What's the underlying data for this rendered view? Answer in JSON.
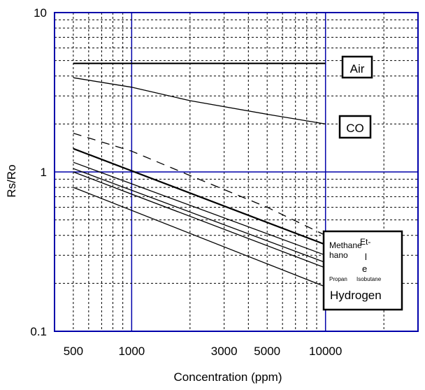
{
  "chart_data": {
    "type": "line",
    "xlabel": "Concentration (ppm)",
    "ylabel": "Rs/Ro",
    "xscale": "log",
    "yscale": "log",
    "xlim": [
      400,
      30000
    ],
    "ylim": [
      0.1,
      10
    ],
    "grid": true,
    "x_ticks": [
      {
        "value": 500,
        "label": "500"
      },
      {
        "value": 1000,
        "label": "1000"
      },
      {
        "value": 3000,
        "label": "3000"
      },
      {
        "value": 5000,
        "label": "5000"
      },
      {
        "value": 10000,
        "label": "10000"
      }
    ],
    "y_ticks": [
      {
        "value": 10,
        "label": "10"
      },
      {
        "value": 1,
        "label": "1"
      },
      {
        "value": 0.1,
        "label": "0.1"
      }
    ],
    "series": [
      {
        "name": "Air",
        "style": "solid",
        "x": [
          500,
          10000
        ],
        "y": [
          4.8,
          4.8
        ]
      },
      {
        "name": "CO",
        "style": "solid",
        "x": [
          500,
          1000,
          2000,
          5000,
          10000
        ],
        "y": [
          3.9,
          3.4,
          2.8,
          2.3,
          2.0
        ]
      },
      {
        "name": "",
        "style": "dashed",
        "x": [
          500,
          1000,
          2000,
          5000,
          10000
        ],
        "y": [
          1.75,
          1.35,
          0.95,
          0.6,
          0.4
        ]
      },
      {
        "name": "",
        "style": "solid",
        "x": [
          500,
          10000
        ],
        "y": [
          1.4,
          0.35
        ]
      },
      {
        "name": "",
        "style": "solid",
        "x": [
          500,
          10000
        ],
        "y": [
          1.15,
          0.3
        ]
      },
      {
        "name": "",
        "style": "solid",
        "x": [
          500,
          10000
        ],
        "y": [
          1.05,
          0.27
        ]
      },
      {
        "name": "",
        "style": "solid",
        "x": [
          500,
          10000
        ],
        "y": [
          1.0,
          0.25
        ]
      },
      {
        "name": "",
        "style": "solid",
        "x": [
          500,
          10000
        ],
        "y": [
          0.8,
          0.19
        ]
      }
    ],
    "labels": {
      "air": "Air",
      "co": "CO",
      "methane": "Methane",
      "ethanol_1": "Et-",
      "ethanol_2": "hano",
      "ethanol_3": "l",
      "ethanol_4": "e",
      "propane": "Propan",
      "isobutane": "Isobutane",
      "hydrogen": "Hydrogen"
    }
  }
}
